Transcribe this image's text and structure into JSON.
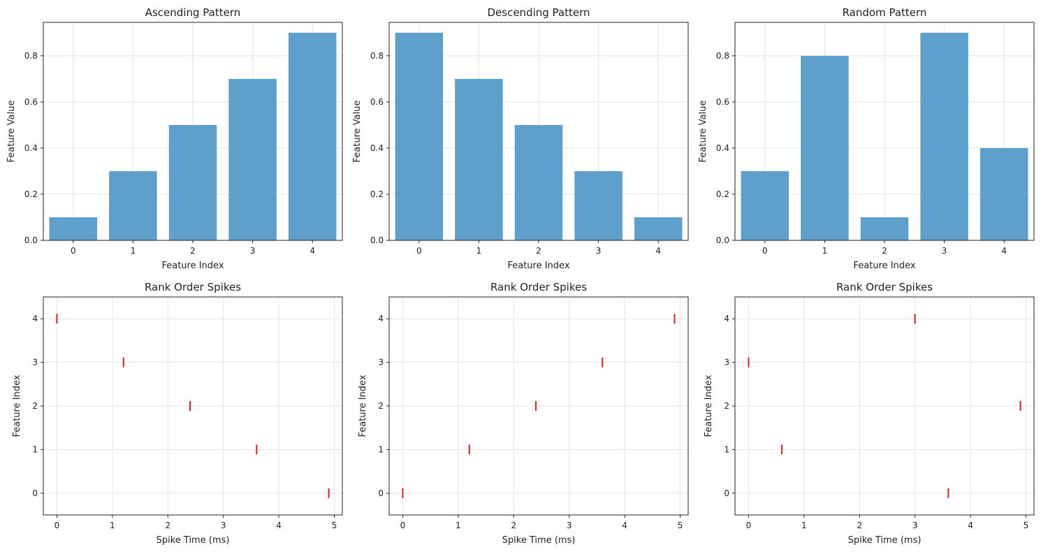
{
  "colors": {
    "bar": "#5f9fcb",
    "spike": "#e41a1c",
    "grid": "#e3e3e3",
    "axis": "#222222"
  },
  "chart_data": [
    {
      "type": "bar",
      "title": "Ascending Pattern",
      "xlabel": "Feature Index",
      "ylabel": "Feature Value",
      "categories": [
        "0",
        "1",
        "2",
        "3",
        "4"
      ],
      "values": [
        0.1,
        0.3,
        0.5,
        0.7,
        0.9
      ],
      "xlim": [
        -0.5,
        4.5
      ],
      "ylim": [
        0,
        0.945
      ],
      "xticks": [
        0,
        1,
        2,
        3,
        4
      ],
      "yticks": [
        0.0,
        0.2,
        0.4,
        0.6,
        0.8
      ],
      "grid": true
    },
    {
      "type": "bar",
      "title": "Descending Pattern",
      "xlabel": "Feature Index",
      "ylabel": "Feature Value",
      "categories": [
        "0",
        "1",
        "2",
        "3",
        "4"
      ],
      "values": [
        0.9,
        0.7,
        0.5,
        0.3,
        0.1
      ],
      "xlim": [
        -0.5,
        4.5
      ],
      "ylim": [
        0,
        0.945
      ],
      "xticks": [
        0,
        1,
        2,
        3,
        4
      ],
      "yticks": [
        0.0,
        0.2,
        0.4,
        0.6,
        0.8
      ],
      "grid": true
    },
    {
      "type": "bar",
      "title": "Random Pattern",
      "xlabel": "Feature Index",
      "ylabel": "Feature Value",
      "categories": [
        "0",
        "1",
        "2",
        "3",
        "4"
      ],
      "values": [
        0.3,
        0.8,
        0.1,
        0.9,
        0.4
      ],
      "xlim": [
        -0.5,
        4.5
      ],
      "ylim": [
        0,
        0.945
      ],
      "xticks": [
        0,
        1,
        2,
        3,
        4
      ],
      "yticks": [
        0.0,
        0.2,
        0.4,
        0.6,
        0.8
      ],
      "grid": true
    },
    {
      "type": "scatter",
      "title": "Rank Order Spikes",
      "xlabel": "Spike Time (ms)",
      "ylabel": "Feature Index",
      "x": [
        4.9,
        3.6,
        2.4,
        1.2,
        0.0
      ],
      "y": [
        0,
        1,
        2,
        3,
        4
      ],
      "xlim": [
        -0.245,
        5.145
      ],
      "ylim": [
        -0.5,
        4.5
      ],
      "xticks": [
        0,
        1,
        2,
        3,
        4,
        5
      ],
      "yticks": [
        0,
        1,
        2,
        3,
        4
      ],
      "marker": "|",
      "grid": true
    },
    {
      "type": "scatter",
      "title": "Rank Order Spikes",
      "xlabel": "Spike Time (ms)",
      "ylabel": "Feature Index",
      "x": [
        0.0,
        1.2,
        2.4,
        3.6,
        4.9
      ],
      "y": [
        0,
        1,
        2,
        3,
        4
      ],
      "xlim": [
        -0.245,
        5.145
      ],
      "ylim": [
        -0.5,
        4.5
      ],
      "xticks": [
        0,
        1,
        2,
        3,
        4,
        5
      ],
      "yticks": [
        0,
        1,
        2,
        3,
        4
      ],
      "marker": "|",
      "grid": true
    },
    {
      "type": "scatter",
      "title": "Rank Order Spikes",
      "xlabel": "Spike Time (ms)",
      "ylabel": "Feature Index",
      "x": [
        3.6,
        0.6,
        4.9,
        0.0,
        3.0
      ],
      "y": [
        0,
        1,
        2,
        3,
        4
      ],
      "xlim": [
        -0.245,
        5.145
      ],
      "ylim": [
        -0.5,
        4.5
      ],
      "xticks": [
        0,
        1,
        2,
        3,
        4,
        5
      ],
      "yticks": [
        0,
        1,
        2,
        3,
        4
      ],
      "marker": "|",
      "grid": true
    }
  ]
}
